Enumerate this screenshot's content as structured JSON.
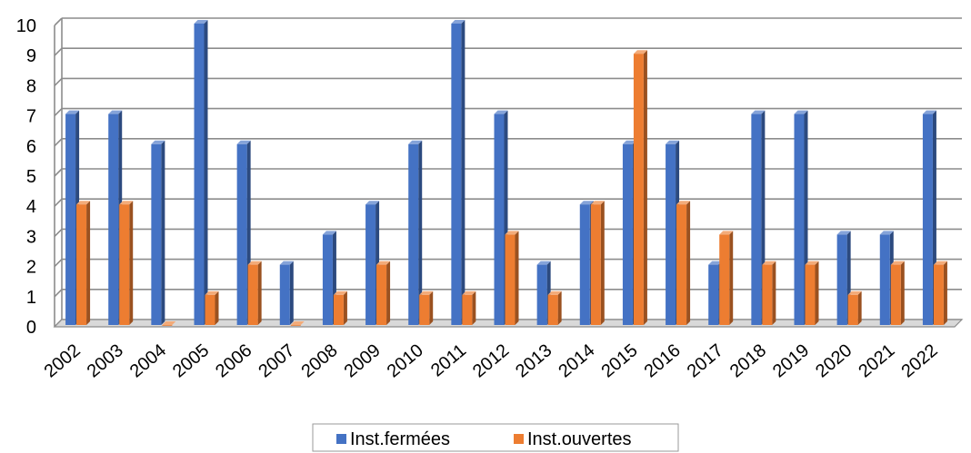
{
  "chart_data": {
    "type": "bar",
    "categories": [
      "2002",
      "2003",
      "2004",
      "2005",
      "2006",
      "2007",
      "2008",
      "2009",
      "2010",
      "2011",
      "2012",
      "2013",
      "2014",
      "2015",
      "2016",
      "2017",
      "2018",
      "2019",
      "2020",
      "2021",
      "2022"
    ],
    "series": [
      {
        "name": "Inst.fermées",
        "color": "#4472C4",
        "values": [
          7,
          7,
          6,
          10,
          6,
          2,
          3,
          4,
          6,
          10,
          7,
          2,
          4,
          6,
          6,
          2,
          7,
          7,
          3,
          3,
          7
        ]
      },
      {
        "name": "Inst.ouvertes",
        "color": "#ED7D31",
        "values": [
          4,
          4,
          0,
          1,
          2,
          0,
          1,
          2,
          1,
          1,
          3,
          1,
          4,
          9,
          4,
          3,
          2,
          2,
          1,
          2,
          2
        ]
      }
    ],
    "ylim": [
      0,
      10
    ],
    "yticks": [
      "0",
      "1",
      "2",
      "3",
      "4",
      "5",
      "6",
      "7",
      "8",
      "9",
      "10"
    ],
    "grid": true,
    "legend": "bottom",
    "title": "",
    "xlabel": "",
    "ylabel": ""
  }
}
